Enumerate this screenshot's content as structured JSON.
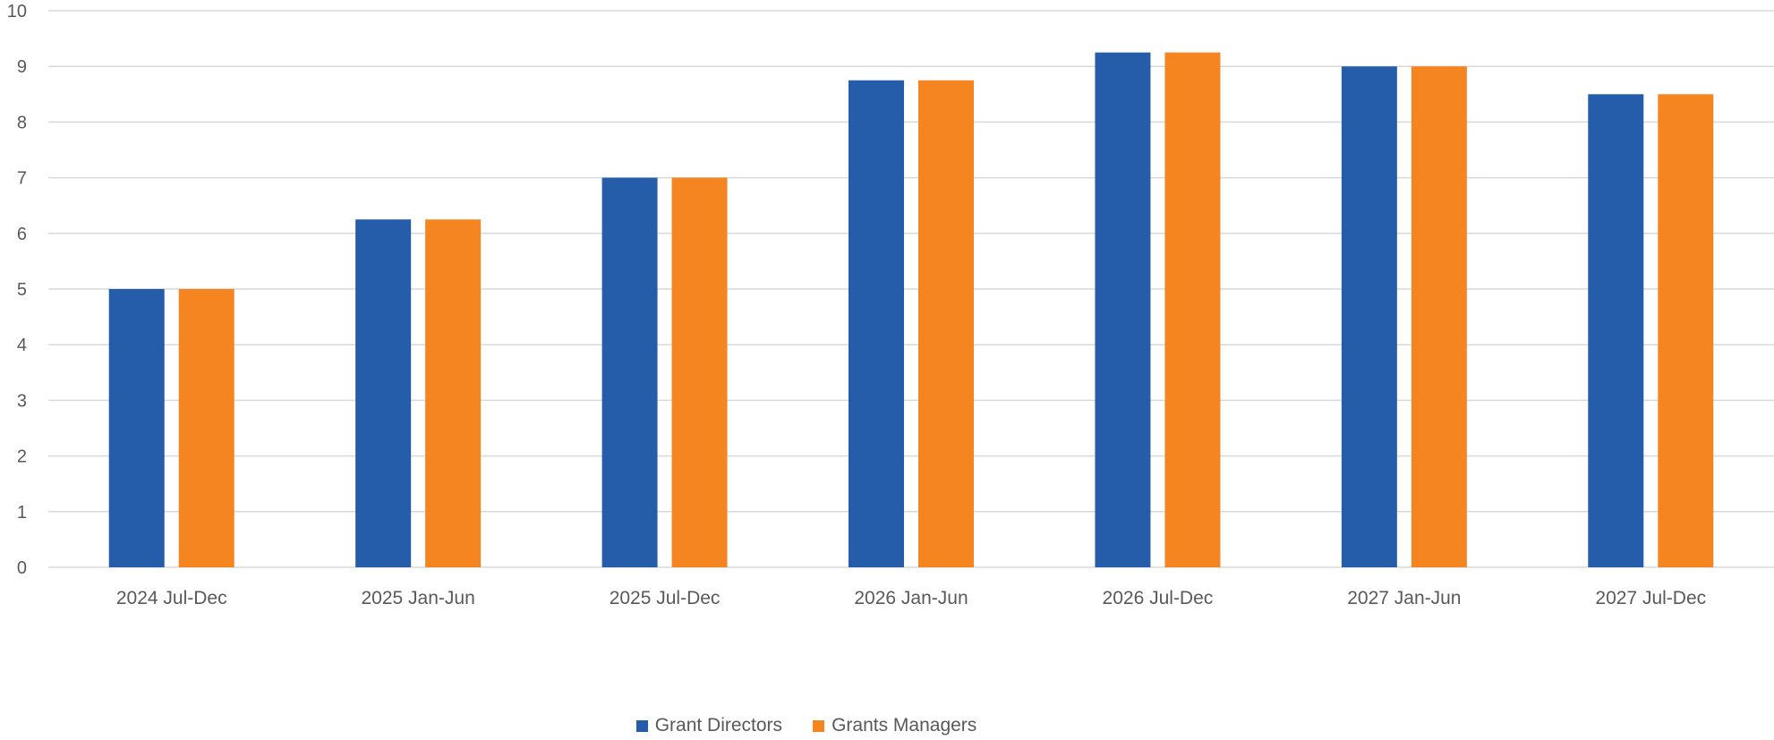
{
  "chart_data": {
    "type": "bar",
    "categories": [
      "2024 Jul-Dec",
      "2025 Jan-Jun",
      "2025 Jul-Dec",
      "2026 Jan-Jun",
      "2026 Jul-Dec",
      "2027 Jan-Jun",
      "2027 Jul-Dec"
    ],
    "series": [
      {
        "name": "Grant Directors",
        "color": "#265DAB",
        "values": [
          5,
          6.25,
          7,
          8.75,
          9.25,
          9,
          8.5
        ]
      },
      {
        "name": "Grants Managers",
        "color": "#F58520",
        "values": [
          5,
          6.25,
          7,
          8.75,
          9.25,
          9,
          8.5
        ]
      }
    ],
    "title": "",
    "xlabel": "",
    "ylabel": "",
    "ylim": [
      0,
      10
    ],
    "yticks": [
      "0",
      "1",
      "2",
      "3",
      "4",
      "5",
      "6",
      "7",
      "8",
      "9",
      "10"
    ],
    "grid": true,
    "legend_position": "bottom"
  }
}
